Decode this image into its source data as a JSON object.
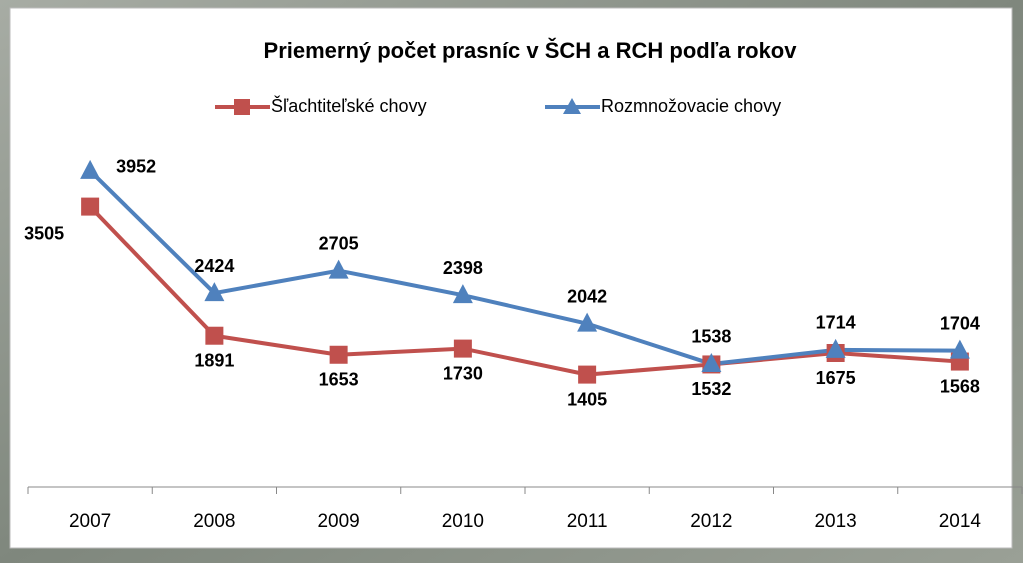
{
  "chart_data": {
    "type": "line",
    "title": "Priemerný počet prasníc v ŠCH a RCH podľa rokov",
    "categories": [
      "2007",
      "2008",
      "2009",
      "2010",
      "2011",
      "2012",
      "2013",
      "2014"
    ],
    "series": [
      {
        "name": "Šľachtiteľské chovy",
        "color": "#c0504d",
        "values": [
          3505,
          1891,
          1653,
          1730,
          1405,
          1532,
          1675,
          1568
        ]
      },
      {
        "name": "Rozmnožovacie chovy",
        "color": "#4f81bd",
        "values": [
          3952,
          2424,
          2705,
          2398,
          2042,
          1538,
          1714,
          1704
        ]
      }
    ],
    "ylim": [
      0,
      5000
    ],
    "legend": "top"
  }
}
